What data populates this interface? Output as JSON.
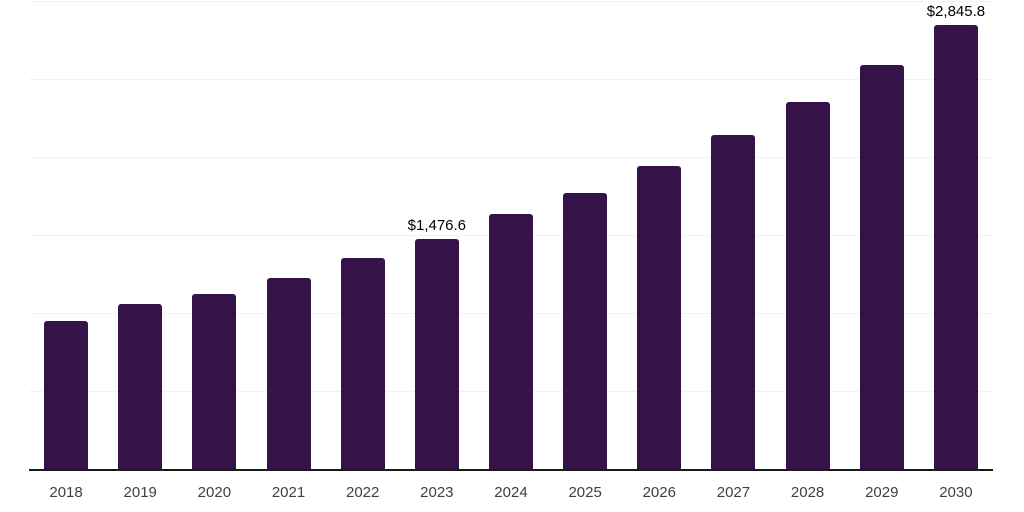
{
  "chart_data": {
    "type": "bar",
    "title": "",
    "xlabel": "",
    "ylabel": "",
    "categories": [
      "2018",
      "2019",
      "2020",
      "2021",
      "2022",
      "2023",
      "2024",
      "2025",
      "2026",
      "2027",
      "2028",
      "2029",
      "2030"
    ],
    "values": [
      946,
      1059,
      1123,
      1226,
      1355,
      1476.6,
      1633,
      1772,
      1942,
      2141,
      2354,
      2589,
      2845.8
    ],
    "annotations": [
      {
        "index": 5,
        "text": "$1,476.6"
      },
      {
        "index": 12,
        "text": "$2,845.8"
      }
    ],
    "ylim": [
      0,
      3000
    ],
    "gridline_step": 500,
    "grid": true,
    "legend": "none",
    "y_axis_labels_visible": false,
    "colors": {
      "bar": "#36124B",
      "gridline": "#F2F2F2",
      "axis_line": "#1A1A1A",
      "tick_label": "#3F3F3F",
      "data_label": "#000000",
      "background": "#FFFFFF"
    }
  }
}
